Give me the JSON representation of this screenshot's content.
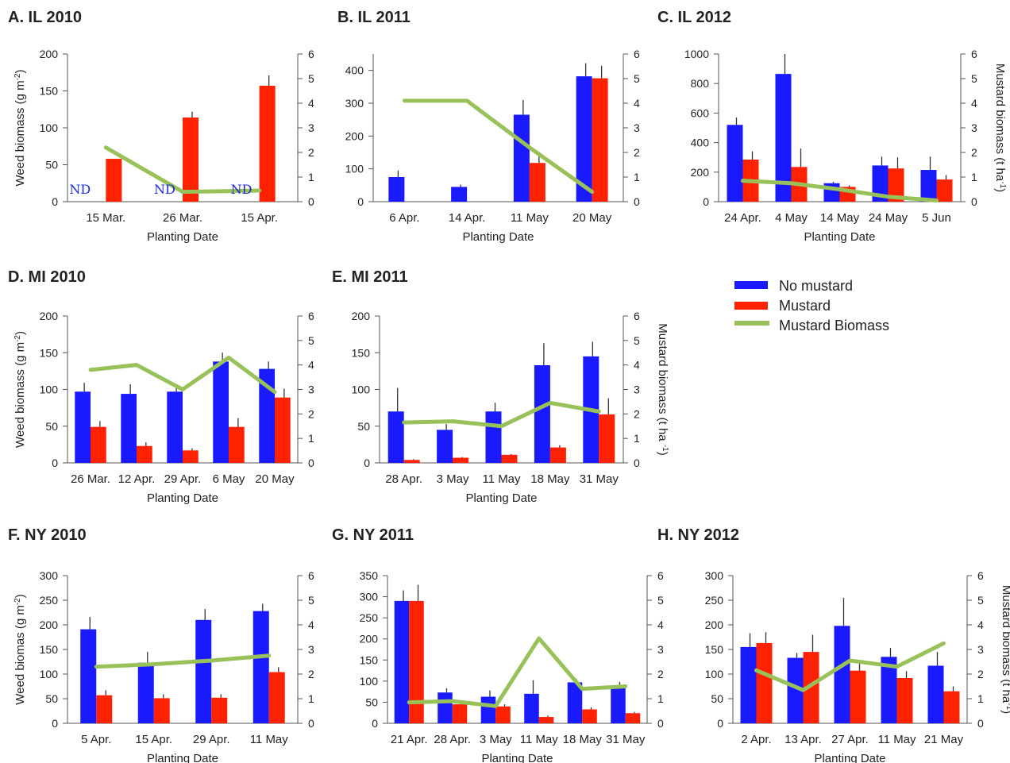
{
  "colors": {
    "no_mustard": "#1a1aff",
    "mustard": "#ff2200",
    "mustard_biomass": "#99c15a",
    "axis": "#555555"
  },
  "legend": {
    "items": [
      "No mustard",
      "Mustard",
      "Mustard Biomass"
    ]
  },
  "chart_data": [
    {
      "id": "A",
      "type": "bar",
      "title": "A. IL 2010",
      "xlabel": "Planting Date",
      "ylabel": "Weed biomass (g m-2)",
      "y2label": "",
      "categories": [
        "15 Mar.",
        "26 Mar.",
        "15 Apr."
      ],
      "ylim": [
        0,
        200
      ],
      "yticks": [
        0,
        50,
        100,
        150,
        200
      ],
      "y2lim": [
        0,
        6
      ],
      "y2ticks": [
        0,
        1,
        2,
        3,
        4,
        5,
        6
      ],
      "series": [
        {
          "name": "No mustard",
          "values": [
            null,
            null,
            null
          ],
          "errors": [
            0,
            0,
            0
          ]
        },
        {
          "name": "Mustard",
          "values": [
            58,
            114,
            157
          ],
          "errors": [
            0,
            8,
            14
          ]
        }
      ],
      "line": {
        "name": "Mustard Biomass",
        "values": [
          2.2,
          0.4,
          0.45
        ]
      },
      "annotations": [
        {
          "category": 0,
          "text": "ND"
        },
        {
          "category": 1,
          "text": "ND"
        },
        {
          "category": 2,
          "text": "ND"
        }
      ]
    },
    {
      "id": "B",
      "type": "bar",
      "title": "B. IL 2011",
      "xlabel": "Planting Date",
      "ylabel": "",
      "y2label": "",
      "categories": [
        "6 Apr.",
        "14 Apr.",
        "11 May",
        "20 May"
      ],
      "ylim": [
        0,
        450
      ],
      "yticks": [
        0,
        100,
        200,
        300,
        400
      ],
      "y2lim": [
        0,
        6
      ],
      "y2ticks": [
        0,
        1,
        2,
        3,
        4,
        5,
        6
      ],
      "series": [
        {
          "name": "No mustard",
          "values": [
            75,
            45,
            265,
            382
          ],
          "errors": [
            20,
            7,
            45,
            40
          ]
        },
        {
          "name": "Mustard",
          "values": [
            0,
            0,
            118,
            376
          ],
          "errors": [
            0,
            0,
            25,
            38
          ]
        }
      ],
      "line": {
        "name": "Mustard Biomass",
        "values": [
          4.1,
          4.1,
          2.2,
          0.4
        ]
      }
    },
    {
      "id": "C",
      "type": "bar",
      "title": "C. IL 2012",
      "xlabel": "Planting Date",
      "ylabel": "",
      "y2label": "Mustard biomass (t ha-1)",
      "categories": [
        "24 Apr.",
        "4 May",
        "14 May",
        "24 May",
        "5 Jun"
      ],
      "ylim": [
        0,
        1000
      ],
      "yticks": [
        0,
        200,
        400,
        600,
        800,
        1000
      ],
      "y2lim": [
        0,
        6
      ],
      "y2ticks": [
        0,
        1,
        2,
        3,
        4,
        5,
        6
      ],
      "series": [
        {
          "name": "No mustard",
          "values": [
            520,
            865,
            125,
            245,
            215
          ],
          "errors": [
            50,
            135,
            10,
            60,
            90
          ]
        },
        {
          "name": "Mustard",
          "values": [
            285,
            235,
            100,
            225,
            150
          ],
          "errors": [
            55,
            125,
            10,
            75,
            30
          ]
        }
      ],
      "line": {
        "name": "Mustard Biomass",
        "values": [
          0.85,
          0.75,
          0.5,
          0.2,
          0.05
        ]
      }
    },
    {
      "id": "D",
      "type": "bar",
      "title": "D. MI 2010",
      "xlabel": "Planting Date",
      "ylabel": "Weed biomass (g m-2)",
      "y2label": "",
      "categories": [
        "26 Mar.",
        "12 Apr.",
        "29 Apr.",
        "6 May",
        "20 May"
      ],
      "ylim": [
        0,
        200
      ],
      "yticks": [
        0,
        50,
        100,
        150,
        200
      ],
      "y2lim": [
        0,
        6
      ],
      "y2ticks": [
        0,
        1,
        2,
        3,
        4,
        5,
        6
      ],
      "series": [
        {
          "name": "No mustard",
          "values": [
            97,
            94,
            97,
            138,
            128
          ],
          "errors": [
            12,
            13,
            10,
            12,
            10
          ]
        },
        {
          "name": "Mustard",
          "values": [
            49,
            23,
            17,
            49,
            89
          ],
          "errors": [
            8,
            5,
            3,
            12,
            12
          ]
        }
      ],
      "line": {
        "name": "Mustard Biomass",
        "values": [
          3.8,
          4.0,
          3.0,
          4.3,
          2.9
        ]
      }
    },
    {
      "id": "E",
      "type": "bar",
      "title": "E. MI 2011",
      "xlabel": "Planting Date",
      "ylabel": "",
      "y2label": "Mustard biomass (t ha -1)",
      "categories": [
        "28 Apr.",
        "3 May",
        "11 May",
        "18 May",
        "31 May"
      ],
      "ylim": [
        0,
        200
      ],
      "yticks": [
        0,
        50,
        100,
        150,
        200
      ],
      "y2lim": [
        0,
        6
      ],
      "y2ticks": [
        0,
        1,
        2,
        3,
        4,
        5,
        6
      ],
      "series": [
        {
          "name": "No mustard",
          "values": [
            70,
            45,
            70,
            133,
            145
          ],
          "errors": [
            32,
            8,
            12,
            30,
            20
          ]
        },
        {
          "name": "Mustard",
          "values": [
            4,
            7,
            11,
            21,
            66
          ],
          "errors": [
            1,
            1,
            1,
            3,
            22
          ]
        }
      ],
      "line": {
        "name": "Mustard Biomass",
        "values": [
          1.65,
          1.7,
          1.5,
          2.45,
          2.1
        ]
      }
    },
    {
      "id": "F",
      "type": "bar",
      "title": "F. NY 2010",
      "xlabel": "Planting Date",
      "ylabel": "Weed biomas (g m-2)",
      "y2label": "",
      "categories": [
        "5 Apr.",
        "15 Apr.",
        "29 Apr.",
        "11 May"
      ],
      "ylim": [
        0,
        300
      ],
      "yticks": [
        0,
        50,
        100,
        150,
        200,
        250,
        300
      ],
      "y2lim": [
        0,
        6
      ],
      "y2ticks": [
        0,
        1,
        2,
        3,
        4,
        5,
        6
      ],
      "series": [
        {
          "name": "No mustard",
          "values": [
            191,
            123,
            210,
            228
          ],
          "errors": [
            25,
            22,
            22,
            15
          ]
        },
        {
          "name": "Mustard",
          "values": [
            57,
            51,
            52,
            104
          ],
          "errors": [
            10,
            8,
            7,
            10
          ]
        }
      ],
      "line": {
        "name": "Mustard Biomass",
        "values": [
          2.3,
          2.4,
          2.55,
          2.75
        ]
      }
    },
    {
      "id": "G",
      "type": "bar",
      "title": "G. NY 2011",
      "xlabel": "Planting Date",
      "ylabel": "",
      "y2label": "",
      "categories": [
        "21 Apr.",
        "28 Apr.",
        "3 May",
        "11 May",
        "18 May",
        "31 May"
      ],
      "ylim": [
        0,
        350
      ],
      "yticks": [
        0,
        50,
        100,
        150,
        200,
        250,
        300,
        350
      ],
      "y2lim": [
        0,
        6
      ],
      "y2ticks": [
        0,
        1,
        2,
        3,
        4,
        5,
        6
      ],
      "series": [
        {
          "name": "No mustard",
          "values": [
            290,
            73,
            63,
            70,
            97,
            88
          ],
          "errors": [
            25,
            10,
            15,
            32,
            8,
            10
          ]
        },
        {
          "name": "Mustard",
          "values": [
            290,
            45,
            40,
            15,
            33,
            24
          ],
          "errors": [
            38,
            5,
            5,
            3,
            5,
            3
          ]
        }
      ],
      "line": {
        "name": "Mustard Biomass",
        "values": [
          0.85,
          0.9,
          0.7,
          3.45,
          1.4,
          1.5
        ]
      }
    },
    {
      "id": "H",
      "type": "bar",
      "title": "H. NY 2012",
      "xlabel": "Planting Date",
      "ylabel": "",
      "y2label": "Mustard biomass (t ha-1)",
      "categories": [
        "2 Apr.",
        "13 Apr.",
        "27 Apr.",
        "11 May",
        "21 May"
      ],
      "ylim": [
        0,
        300
      ],
      "yticks": [
        0,
        50,
        100,
        150,
        200,
        250,
        300
      ],
      "y2lim": [
        0,
        6
      ],
      "y2ticks": [
        0,
        1,
        2,
        3,
        4,
        5,
        6
      ],
      "series": [
        {
          "name": "No mustard",
          "values": [
            155,
            133,
            198,
            135,
            117
          ],
          "errors": [
            28,
            10,
            57,
            18,
            28
          ]
        },
        {
          "name": "Mustard",
          "values": [
            163,
            145,
            107,
            92,
            65
          ],
          "errors": [
            22,
            35,
            22,
            14,
            10
          ]
        }
      ],
      "line": {
        "name": "Mustard Biomass",
        "values": [
          2.15,
          1.35,
          2.55,
          2.3,
          3.25
        ]
      }
    }
  ]
}
